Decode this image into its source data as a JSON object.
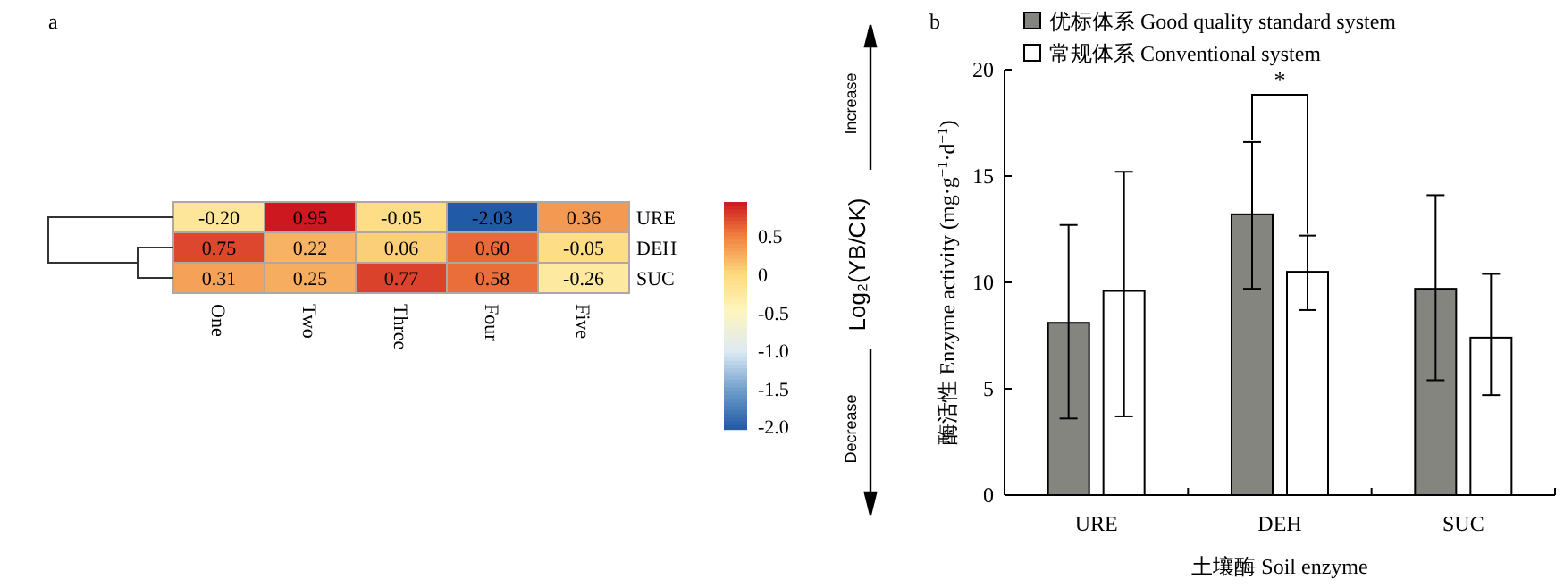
{
  "chart_data": [
    {
      "type": "heatmap",
      "title": "a",
      "categories": [
        "One",
        "Two",
        "Three",
        "Four",
        "Five"
      ],
      "y_categories": [
        "URE",
        "DEH",
        "SUC"
      ],
      "cells": [
        [
          -0.2,
          0.95,
          -0.05,
          -2.03,
          0.36
        ],
        [
          0.75,
          0.22,
          0.06,
          0.6,
          -0.05
        ],
        [
          0.31,
          0.25,
          0.77,
          0.58,
          -0.26
        ]
      ],
      "cell_labels": [
        [
          "-0.20",
          "0.95",
          "-0.05",
          "-2.03",
          "0.36"
        ],
        [
          "0.75",
          "0.22",
          "0.06",
          "0.60",
          "-0.05"
        ],
        [
          "0.31",
          "0.25",
          "0.77",
          "0.58",
          "-0.26"
        ]
      ],
      "clim": [
        -2.03,
        0.95
      ],
      "cticks": [
        {
          "value": -2.0,
          "label": "-2.0"
        },
        {
          "value": -1.5,
          "label": "-1.5"
        },
        {
          "value": -1.0,
          "label": "-1.0"
        },
        {
          "value": -0.5,
          "label": "-0.5"
        },
        {
          "value": 0,
          "label": "0"
        },
        {
          "value": 0.5,
          "label": "0.5"
        }
      ],
      "clabel": "Log₂(YB/CK)",
      "annotations": [
        "Increase",
        "Decrease"
      ]
    },
    {
      "type": "bar",
      "title": "b",
      "categories": [
        "URE",
        "DEH",
        "SUC"
      ],
      "series": [
        {
          "name": "优标体系 Good quality standard system",
          "color": "#858580",
          "values": [
            8.1,
            13.2,
            9.7
          ],
          "errors": [
            [
              3.6,
              12.7
            ],
            [
              9.7,
              16.6
            ],
            [
              5.4,
              14.1
            ]
          ]
        },
        {
          "name": "常规体系 Conventional system",
          "color": "#ffffff",
          "values": [
            9.6,
            10.5,
            7.4
          ],
          "errors": [
            [
              3.7,
              15.2
            ],
            [
              8.7,
              12.2
            ],
            [
              4.7,
              10.4
            ]
          ]
        }
      ],
      "ylim": [
        0,
        20
      ],
      "yticks": [
        0,
        5,
        10,
        15,
        20
      ],
      "xlabel": "土壤酶 Soil enzyme",
      "ylabel": "酶活性 Enzyme activity (mg·g$^{−1}$·d$^{−1}$)",
      "legend": "top left",
      "grid": false,
      "annotations": [
        "*"
      ]
    }
  ]
}
